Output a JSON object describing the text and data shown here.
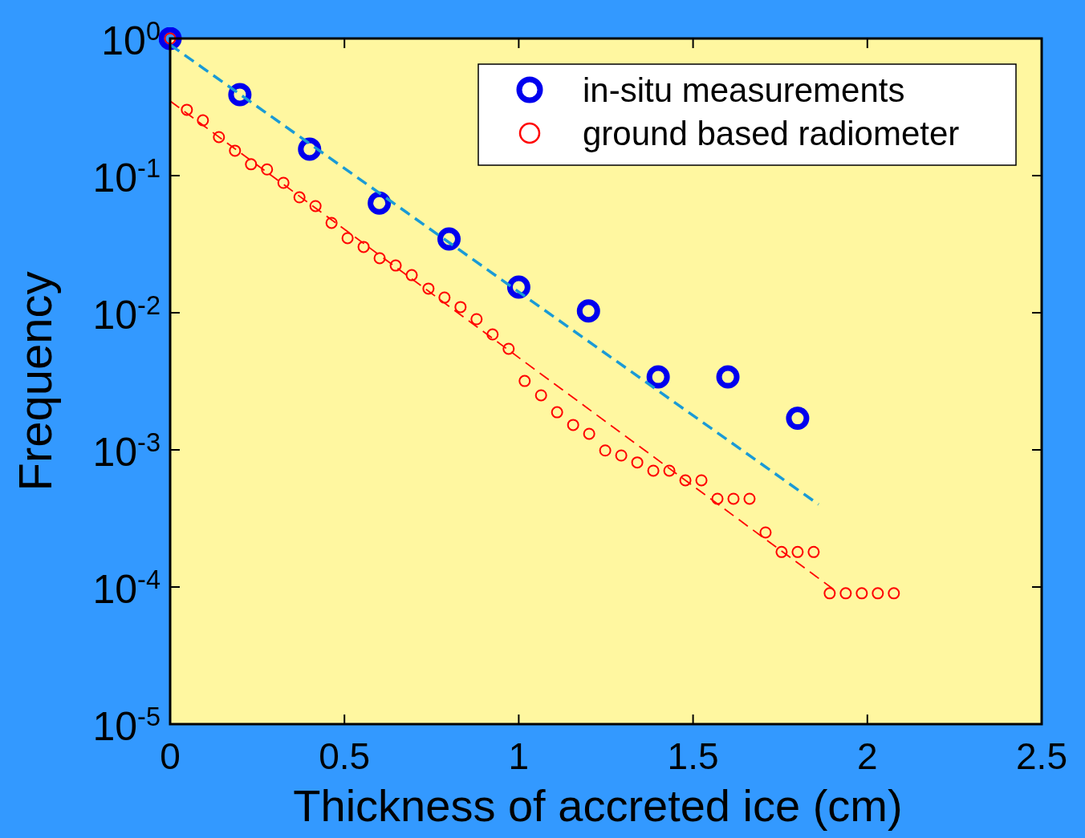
{
  "chart_data": {
    "type": "scatter",
    "xlabel": "Thickness of accreted ice (cm)",
    "ylabel": "Frequency",
    "log": "y",
    "xlim": [
      0,
      2.5
    ],
    "ylim": [
      1e-05,
      1
    ],
    "xticks": [
      0,
      0.5,
      1,
      1.5,
      2,
      2.5
    ],
    "yticks": [
      {
        "value": 1e-05,
        "label": "10$^{-5}$"
      },
      {
        "value": 0.0001,
        "label": "10$^{-4}$"
      },
      {
        "value": 0.001,
        "label": "10$^{-3}$"
      },
      {
        "value": 0.01,
        "label": "10$^{-2}$"
      },
      {
        "value": 0.1,
        "label": "10$^{-1}$"
      },
      {
        "value": 1,
        "label": "10$^{0}$"
      }
    ],
    "grid": false,
    "legend": "top right",
    "series": [
      {
        "name": "in-situ measurements",
        "marker": "circle",
        "color": "#0000ee",
        "x": [
          0,
          0.2,
          0.4,
          0.6,
          0.8,
          1,
          1.2,
          1.4,
          1.6,
          1.8
        ],
        "values": [
          1,
          0.39,
          0.156,
          0.063,
          0.0345,
          0.0154,
          0.0103,
          0.0034,
          0.0034,
          0.0017
        ]
      },
      {
        "name": "ground based radiometer",
        "marker": "circle",
        "color": "#ff0000",
        "x": [
          0,
          0.048,
          0.094,
          0.14,
          0.186,
          0.232,
          0.278,
          0.325,
          0.371,
          0.417,
          0.463,
          0.509,
          0.555,
          0.601,
          0.647,
          0.693,
          0.741,
          0.787,
          0.833,
          0.879,
          0.925,
          0.971,
          1.017,
          1.064,
          1.11,
          1.156,
          1.202,
          1.248,
          1.294,
          1.34,
          1.386,
          1.432,
          1.478,
          1.524,
          1.57,
          1.616,
          1.662,
          1.708,
          1.754,
          1.8,
          1.846,
          1.892,
          1.938,
          1.984,
          2.03,
          2.076
        ],
        "values": [
          1,
          0.302,
          0.253,
          0.191,
          0.152,
          0.121,
          0.111,
          0.0886,
          0.0695,
          0.06,
          0.0452,
          0.035,
          0.0302,
          0.025,
          0.0221,
          0.0188,
          0.015,
          0.0129,
          0.011,
          0.00898,
          0.00695,
          0.00546,
          0.00318,
          0.0025,
          0.00188,
          0.00152,
          0.00131,
          0.00099,
          0.00091,
          0.00081,
          0.000705,
          0.000705,
          0.0006,
          0.0006,
          0.00044,
          0.00044,
          0.00044,
          0.00025,
          0.00018,
          0.00018,
          0.00018,
          9e-05,
          9e-05,
          9e-05,
          9e-05,
          9e-05
        ]
      },
      {
        "type": "line",
        "marker": "none",
        "line_style": "dashed",
        "color": "#1a9ad6",
        "x": [
          0,
          1.86
        ],
        "values": [
          0.9,
          0.0004
        ]
      },
      {
        "type": "line",
        "marker": "none",
        "line_style": "dashed",
        "color": "#ff0000",
        "x": [
          0,
          1.906
        ],
        "values": [
          0.35,
          9.5e-05
        ]
      }
    ]
  }
}
